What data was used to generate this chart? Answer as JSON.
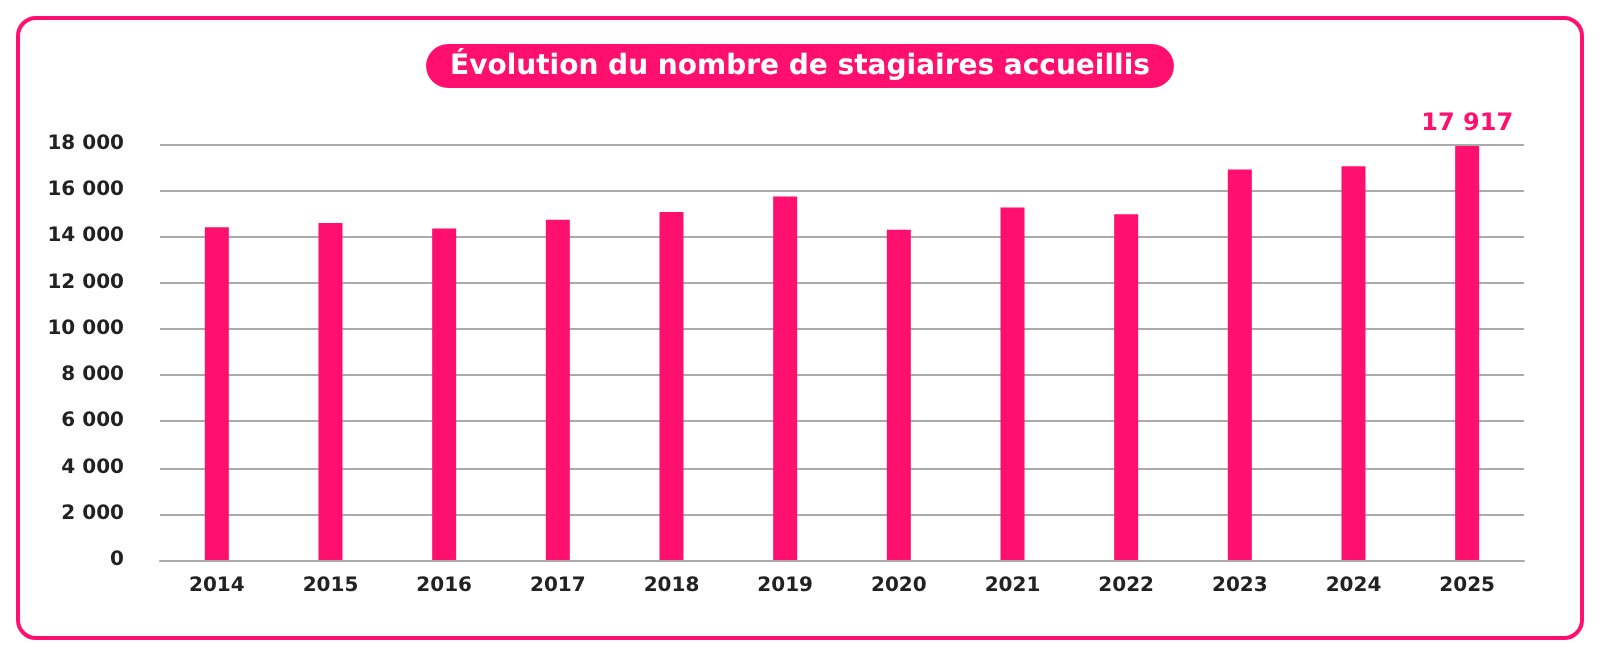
{
  "chart_data": {
    "type": "bar",
    "title": "Évolution du nombre de stagiaires accueillis",
    "categories": [
      "2014",
      "2015",
      "2016",
      "2017",
      "2018",
      "2019",
      "2020",
      "2021",
      "2022",
      "2023",
      "2024",
      "2025"
    ],
    "values": [
      14400,
      14580,
      14340,
      14720,
      15060,
      15730,
      14290,
      15250,
      14960,
      16900,
      17040,
      17917
    ],
    "value_labels": [
      null,
      null,
      null,
      null,
      null,
      null,
      null,
      null,
      null,
      null,
      null,
      "17 917"
    ],
    "color": "#ff0f6e",
    "ylim": [
      0,
      18000
    ],
    "yticks": [
      {
        "value": 0,
        "label": "0"
      },
      {
        "value": 2000,
        "label": "2 000"
      },
      {
        "value": 4000,
        "label": "4 000"
      },
      {
        "value": 6000,
        "label": "6 000"
      },
      {
        "value": 8000,
        "label": "8 000"
      },
      {
        "value": 10000,
        "label": "10 000"
      },
      {
        "value": 12000,
        "label": "12 000"
      },
      {
        "value": 14000,
        "label": "14 000"
      },
      {
        "value": 16000,
        "label": "16 000"
      },
      {
        "value": 18000,
        "label": "18 000"
      }
    ],
    "grid": "y"
  }
}
